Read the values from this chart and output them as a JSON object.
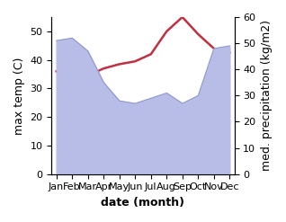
{
  "months": [
    "Jan",
    "Feb",
    "Mar",
    "Apr",
    "May",
    "Jun",
    "Jul",
    "Aug",
    "Sep",
    "Oct",
    "Nov",
    "Dec"
  ],
  "temp_max": [
    36,
    35,
    34.5,
    37,
    38.5,
    39.5,
    42,
    50,
    55,
    49,
    44,
    42.5
  ],
  "precipitation": [
    51,
    52,
    47,
    35,
    28,
    27,
    29,
    31,
    27,
    30,
    48,
    49
  ],
  "temp_color": "#c03040",
  "precip_fill_color": "#b8bde8",
  "precip_line_color": "#9099cc",
  "ylabel_left": "max temp (C)",
  "ylabel_right": "med. precipitation (kg/m2)",
  "xlabel": "date (month)",
  "ylim_left": [
    0,
    55
  ],
  "ylim_right": [
    0,
    60
  ],
  "yticks_left": [
    0,
    10,
    20,
    30,
    40,
    50
  ],
  "yticks_right": [
    0,
    10,
    20,
    30,
    40,
    50,
    60
  ],
  "label_fontsize": 9,
  "tick_fontsize": 8,
  "xlabel_fontsize": 9
}
